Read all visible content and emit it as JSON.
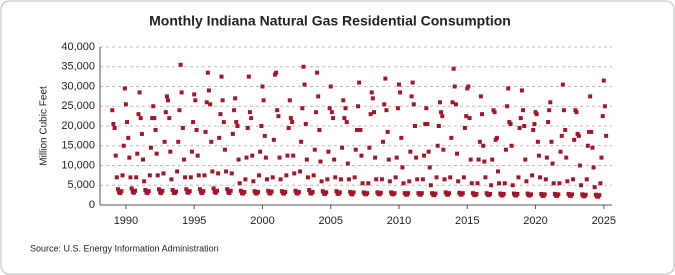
{
  "chart_data": {
    "type": "scatter",
    "title": "Monthly Indiana Natural Gas Residential Consumption",
    "y_label": "Million Cubic Feet",
    "source": "Source: U.S. Energy Information Administration",
    "color": "#a3162a",
    "grid": true,
    "xlim": [
      1988.1,
      2025.6
    ],
    "xticks": [
      1990,
      1995,
      2000,
      2005,
      2010,
      2015,
      2020,
      2025
    ],
    "ylim": [
      0,
      40000
    ],
    "yticks": [
      {
        "value": 0,
        "label": "0"
      },
      {
        "value": 5000,
        "label": "5,000"
      },
      {
        "value": 10000,
        "label": "10,000"
      },
      {
        "value": 15000,
        "label": "15,000"
      },
      {
        "value": 20000,
        "label": "20,000"
      },
      {
        "value": 25000,
        "label": "25,000"
      },
      {
        "value": 30000,
        "label": "30,000"
      },
      {
        "value": 35000,
        "label": "35,000"
      },
      {
        "value": 40000,
        "label": "40,000"
      }
    ],
    "x": [
      1989,
      1989.08,
      1989.17,
      1989.25,
      1989.33,
      1989.42,
      1989.5,
      1989.58,
      1989.67,
      1989.75,
      1989.83,
      1989.92,
      1990,
      1990.08,
      1990.17,
      1990.25,
      1990.33,
      1990.42,
      1990.5,
      1990.58,
      1990.67,
      1990.75,
      1990.83,
      1990.92,
      1991,
      1991.08,
      1991.17,
      1991.25,
      1991.33,
      1991.42,
      1991.5,
      1991.58,
      1991.67,
      1991.75,
      1991.83,
      1991.92,
      1992,
      1992.08,
      1992.17,
      1992.25,
      1992.33,
      1992.42,
      1992.5,
      1992.58,
      1992.67,
      1992.75,
      1992.83,
      1992.92,
      1993,
      1993.08,
      1993.17,
      1993.25,
      1993.33,
      1993.42,
      1993.5,
      1993.58,
      1993.67,
      1993.75,
      1993.83,
      1993.92,
      1994,
      1994.08,
      1994.17,
      1994.25,
      1994.33,
      1994.42,
      1994.5,
      1994.58,
      1994.67,
      1994.75,
      1994.83,
      1994.92,
      1995,
      1995.08,
      1995.17,
      1995.25,
      1995.33,
      1995.42,
      1995.5,
      1995.58,
      1995.67,
      1995.75,
      1995.83,
      1995.92,
      1996,
      1996.08,
      1996.17,
      1996.25,
      1996.33,
      1996.42,
      1996.5,
      1996.58,
      1996.67,
      1996.75,
      1996.83,
      1996.92,
      1997,
      1997.08,
      1997.17,
      1997.25,
      1997.33,
      1997.42,
      1997.5,
      1997.58,
      1997.67,
      1997.75,
      1997.83,
      1997.92,
      1998,
      1998.08,
      1998.17,
      1998.25,
      1998.33,
      1998.42,
      1998.5,
      1998.58,
      1998.67,
      1998.75,
      1998.83,
      1998.92,
      1999,
      1999.08,
      1999.17,
      1999.25,
      1999.33,
      1999.42,
      1999.5,
      1999.58,
      1999.67,
      1999.75,
      1999.83,
      1999.92,
      2000,
      2000.08,
      2000.17,
      2000.25,
      2000.33,
      2000.42,
      2000.5,
      2000.58,
      2000.67,
      2000.75,
      2000.83,
      2000.92,
      2001,
      2001.08,
      2001.17,
      2001.25,
      2001.33,
      2001.42,
      2001.5,
      2001.58,
      2001.67,
      2001.75,
      2001.83,
      2001.92,
      2002,
      2002.08,
      2002.17,
      2002.25,
      2002.33,
      2002.42,
      2002.5,
      2002.58,
      2002.67,
      2002.75,
      2002.83,
      2002.92,
      2003,
      2003.08,
      2003.17,
      2003.25,
      2003.33,
      2003.42,
      2003.5,
      2003.58,
      2003.67,
      2003.75,
      2003.83,
      2003.92,
      2004,
      2004.08,
      2004.17,
      2004.25,
      2004.33,
      2004.42,
      2004.5,
      2004.58,
      2004.67,
      2004.75,
      2004.83,
      2004.92,
      2005,
      2005.08,
      2005.17,
      2005.25,
      2005.33,
      2005.42,
      2005.5,
      2005.58,
      2005.67,
      2005.75,
      2005.83,
      2005.92,
      2006,
      2006.08,
      2006.17,
      2006.25,
      2006.33,
      2006.42,
      2006.5,
      2006.58,
      2006.67,
      2006.75,
      2006.83,
      2006.92,
      2007,
      2007.08,
      2007.17,
      2007.25,
      2007.33,
      2007.42,
      2007.5,
      2007.58,
      2007.67,
      2007.75,
      2007.83,
      2007.92,
      2008,
      2008.08,
      2008.17,
      2008.25,
      2008.33,
      2008.42,
      2008.5,
      2008.58,
      2008.67,
      2008.75,
      2008.83,
      2008.92,
      2009,
      2009.08,
      2009.17,
      2009.25,
      2009.33,
      2009.42,
      2009.5,
      2009.58,
      2009.67,
      2009.75,
      2009.83,
      2009.92,
      2010,
      2010.08,
      2010.17,
      2010.25,
      2010.33,
      2010.42,
      2010.5,
      2010.58,
      2010.67,
      2010.75,
      2010.83,
      2010.92,
      2011,
      2011.08,
      2011.17,
      2011.25,
      2011.33,
      2011.42,
      2011.5,
      2011.58,
      2011.67,
      2011.75,
      2011.83,
      2011.92,
      2012,
      2012.08,
      2012.17,
      2012.25,
      2012.33,
      2012.42,
      2012.5,
      2012.58,
      2012.67,
      2012.75,
      2012.83,
      2012.92,
      2013,
      2013.08,
      2013.17,
      2013.25,
      2013.33,
      2013.42,
      2013.5,
      2013.58,
      2013.67,
      2013.75,
      2013.83,
      2013.92,
      2014,
      2014.08,
      2014.17,
      2014.25,
      2014.33,
      2014.42,
      2014.5,
      2014.58,
      2014.67,
      2014.75,
      2014.83,
      2014.92,
      2015,
      2015.08,
      2015.17,
      2015.25,
      2015.33,
      2015.42,
      2015.5,
      2015.58,
      2015.67,
      2015.75,
      2015.83,
      2015.92,
      2016,
      2016.08,
      2016.17,
      2016.25,
      2016.33,
      2016.42,
      2016.5,
      2016.58,
      2016.67,
      2016.75,
      2016.83,
      2016.92,
      2017,
      2017.08,
      2017.17,
      2017.25,
      2017.33,
      2017.42,
      2017.5,
      2017.58,
      2017.67,
      2017.75,
      2017.83,
      2017.92,
      2018,
      2018.08,
      2018.17,
      2018.25,
      2018.33,
      2018.42,
      2018.5,
      2018.58,
      2018.67,
      2018.75,
      2018.83,
      2018.92,
      2019,
      2019.08,
      2019.17,
      2019.25,
      2019.33,
      2019.42,
      2019.5,
      2019.58,
      2019.67,
      2019.75,
      2019.83,
      2019.92,
      2020,
      2020.08,
      2020.17,
      2020.25,
      2020.33,
      2020.42,
      2020.5,
      2020.58,
      2020.67,
      2020.75,
      2020.83,
      2020.92,
      2021,
      2021.08,
      2021.17,
      2021.25,
      2021.33,
      2021.42,
      2021.5,
      2021.58,
      2021.67,
      2021.75,
      2021.83,
      2021.92,
      2022,
      2022.08,
      2022.17,
      2022.25,
      2022.33,
      2022.42,
      2022.5,
      2022.58,
      2022.67,
      2022.75,
      2022.83,
      2022.92,
      2023,
      2023.08,
      2023.17,
      2023.25,
      2023.33,
      2023.42,
      2023.5,
      2023.58,
      2023.67,
      2023.75,
      2023.83,
      2023.92,
      2024,
      2024.08,
      2024.17,
      2024.25,
      2024.33,
      2024.42,
      2024.5,
      2024.58,
      2024.67,
      2024.75,
      2024.83,
      2024.92,
      2025,
      2025.08,
      2025.17
    ],
    "values": [
      24000,
      20500,
      19500,
      12500,
      7000,
      4000,
      3200,
      3000,
      3500,
      7500,
      15000,
      29500,
      25500,
      21000,
      17000,
      12000,
      7000,
      4200,
      3300,
      3100,
      3600,
      7000,
      13000,
      23000,
      28500,
      22000,
      18000,
      11500,
      6000,
      3800,
      3200,
      3000,
      3500,
      7500,
      14500,
      22000,
      25000,
      22000,
      19000,
      13000,
      7500,
      4000,
      3200,
      3000,
      3600,
      8000,
      16000,
      23500,
      27500,
      26500,
      22000,
      13500,
      6500,
      3800,
      3100,
      3000,
      3400,
      8500,
      16000,
      24000,
      35500,
      28500,
      19500,
      11500,
      7000,
      4000,
      3200,
      3100,
      3500,
      7000,
      13500,
      21000,
      28000,
      26500,
      19000,
      12500,
      7500,
      4000,
      3200,
      3000,
      3500,
      7500,
      18500,
      26000,
      33500,
      29000,
      25500,
      16000,
      8500,
      4200,
      3300,
      3100,
      3600,
      8000,
      17000,
      23000,
      32500,
      26500,
      21000,
      14000,
      8500,
      4000,
      3200,
      3000,
      3600,
      8000,
      18000,
      24000,
      27000,
      21000,
      20000,
      11500,
      5500,
      3600,
      3000,
      2900,
      3300,
      6500,
      12000,
      19500,
      32500,
      23500,
      22000,
      12500,
      6000,
      3500,
      3000,
      2900,
      3300,
      7500,
      13500,
      20000,
      30000,
      26500,
      17500,
      12000,
      6500,
      3600,
      3000,
      2900,
      3400,
      7000,
      16500,
      33000,
      33500,
      24000,
      22500,
      12000,
      6500,
      3500,
      3000,
      2900,
      3300,
      7500,
      12500,
      19500,
      26500,
      22000,
      21000,
      12500,
      8000,
      3600,
      3000,
      2900,
      3300,
      8500,
      16000,
      24500,
      35000,
      30500,
      20500,
      11500,
      7000,
      3800,
      3000,
      2900,
      3300,
      7500,
      14000,
      23500,
      33500,
      27500,
      19000,
      11000,
      6000,
      3500,
      2900,
      2800,
      3200,
      6500,
      13500,
      24500,
      30000,
      23500,
      22000,
      11500,
      7000,
      3500,
      2900,
      2800,
      3200,
      6500,
      14500,
      26500,
      22000,
      24500,
      21000,
      10500,
      6500,
      3300,
      2800,
      2700,
      3200,
      7000,
      14000,
      19000,
      25000,
      31000,
      19000,
      12500,
      5500,
      3200,
      2800,
      2700,
      3000,
      5500,
      14500,
      23000,
      28500,
      27000,
      23500,
      12000,
      6500,
      3200,
      2800,
      2700,
      3100,
      6500,
      16000,
      25500,
      32000,
      24000,
      18500,
      11500,
      6000,
      3200,
      2800,
      2700,
      3000,
      7000,
      12000,
      24500,
      30500,
      28500,
      17000,
      9500,
      5500,
      3000,
      2700,
      2600,
      3000,
      6000,
      13500,
      27500,
      31000,
      25500,
      20000,
      12000,
      6500,
      3000,
      2700,
      2600,
      3000,
      6500,
      12500,
      20500,
      24500,
      20500,
      13500,
      9500,
      5000,
      3000,
      2600,
      2500,
      2900,
      7000,
      15000,
      20000,
      26000,
      23500,
      22500,
      14000,
      6500,
      3200,
      2700,
      2600,
      3000,
      7000,
      17000,
      26000,
      34500,
      30000,
      25500,
      13000,
      6000,
      3100,
      2700,
      2600,
      3000,
      7000,
      19500,
      22500,
      29500,
      30000,
      22000,
      11500,
      5500,
      3000,
      2600,
      2500,
      2800,
      5500,
      11500,
      16000,
      27500,
      23000,
      15000,
      11000,
      7000,
      3000,
      2600,
      2500,
      2800,
      5000,
      11500,
      24000,
      23500,
      16500,
      17000,
      8500,
      5500,
      2900,
      2500,
      2400,
      2800,
      5500,
      14000,
      25000,
      29500,
      21000,
      20500,
      15000,
      5000,
      2900,
      2500,
      2400,
      2800,
      7000,
      19500,
      22000,
      29000,
      24000,
      20000,
      11500,
      6000,
      2900,
      2500,
      2400,
      2700,
      7500,
      19000,
      20500,
      23500,
      23000,
      16000,
      12500,
      7000,
      2800,
      2400,
      2300,
      2700,
      6500,
      12000,
      21000,
      24000,
      26000,
      16000,
      10500,
      5500,
      2800,
      2400,
      2300,
      2700,
      5500,
      13500,
      17500,
      30500,
      24000,
      19000,
      12000,
      6000,
      2800,
      2400,
      2300,
      2700,
      6500,
      16500,
      24000,
      23500,
      18000,
      17500,
      10000,
      5000,
      2700,
      2300,
      2200,
      2600,
      6500,
      15000,
      18500,
      27500,
      18500,
      14500,
      9500,
      4500,
      2600,
      2200,
      2100,
      2500,
      5500,
      12000,
      22500,
      31500,
      25000,
      17500
    ]
  }
}
